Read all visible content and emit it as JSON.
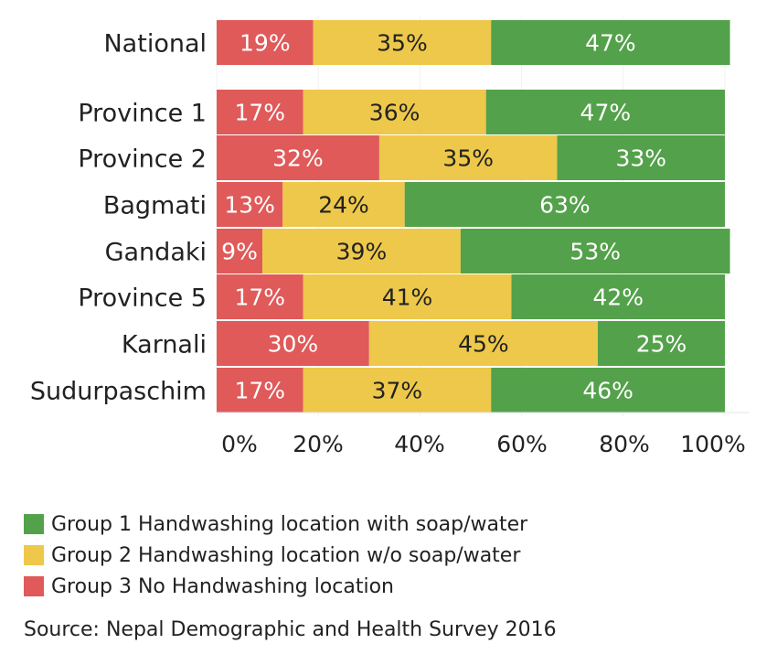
{
  "chart_data": {
    "type": "bar",
    "orientation": "horizontal",
    "stacked": true,
    "categories": [
      "National",
      "Province 1",
      "Province 2",
      "Bagmati",
      "Gandaki",
      "Province 5",
      "Karnali",
      "Sudurpaschim"
    ],
    "series": [
      {
        "name": "Group 3 No Handwashing location",
        "color": "#e05a5a",
        "values": [
          19,
          17,
          32,
          13,
          9,
          17,
          30,
          17
        ]
      },
      {
        "name": "Group 2 Handwashing location w/o soap/water",
        "color": "#edc84a",
        "values": [
          35,
          36,
          35,
          24,
          39,
          41,
          45,
          37
        ]
      },
      {
        "name": "Group 1 Handwashing location with soap/water",
        "color": "#54a14b",
        "values": [
          47,
          47,
          33,
          63,
          53,
          42,
          25,
          46
        ]
      }
    ],
    "data_labels": [
      [
        "19%",
        "35%",
        "47%"
      ],
      [
        "17%",
        "36%",
        "47%"
      ],
      [
        "32%",
        "35%",
        "33%"
      ],
      [
        "13%",
        "24%",
        "63%"
      ],
      [
        "9%",
        "39%",
        "53%"
      ],
      [
        "17%",
        "41%",
        "42%"
      ],
      [
        "30%",
        "45%",
        "25%"
      ],
      [
        "17%",
        "37%",
        "46%"
      ]
    ],
    "x_ticks": [
      "0%",
      "20%",
      "40%",
      "60%",
      "80%",
      "100%"
    ],
    "xlim": [
      0,
      100
    ],
    "xlabel": "",
    "ylabel": "",
    "title": "",
    "legend_position": "bottom-left"
  },
  "legend": {
    "items": [
      {
        "label": "Group 1 Handwashing location with soap/water",
        "color": "#54a14b"
      },
      {
        "label": "Group 2 Handwashing location w/o soap/water",
        "color": "#edc84a"
      },
      {
        "label": "Group 3 No Handwashing location",
        "color": "#e05a5a"
      }
    ]
  },
  "source_text": "Source: Nepal Demographic and Health Survey 2016"
}
